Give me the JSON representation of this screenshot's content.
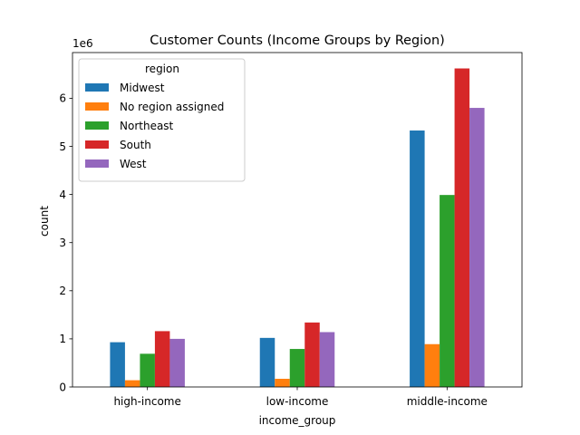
{
  "chart_data": {
    "type": "bar",
    "title": "Customer Counts (Income Groups by Region)",
    "xlabel": "income_group",
    "ylabel": "count",
    "y_offset_text": "1e6",
    "categories": [
      "high-income",
      "low-income",
      "middle-income"
    ],
    "series": [
      {
        "name": "Midwest",
        "color": "#1f77b4",
        "values": [
          930000,
          1020000,
          5330000
        ]
      },
      {
        "name": "No region assigned",
        "color": "#ff7f0e",
        "values": [
          140000,
          170000,
          890000
        ]
      },
      {
        "name": "Northeast",
        "color": "#2ca02c",
        "values": [
          690000,
          790000,
          3990000
        ]
      },
      {
        "name": "South",
        "color": "#d62728",
        "values": [
          1160000,
          1340000,
          6620000
        ]
      },
      {
        "name": "West",
        "color": "#9467bd",
        "values": [
          1000000,
          1140000,
          5800000
        ]
      }
    ],
    "ylim": [
      0,
      6950000
    ],
    "yticks": [
      0,
      1000000,
      2000000,
      3000000,
      4000000,
      5000000,
      6000000
    ],
    "ytick_labels": [
      "0",
      "1",
      "2",
      "3",
      "4",
      "5",
      "6"
    ],
    "legend": {
      "title": "region",
      "placement": "top-left"
    },
    "grid": false
  }
}
